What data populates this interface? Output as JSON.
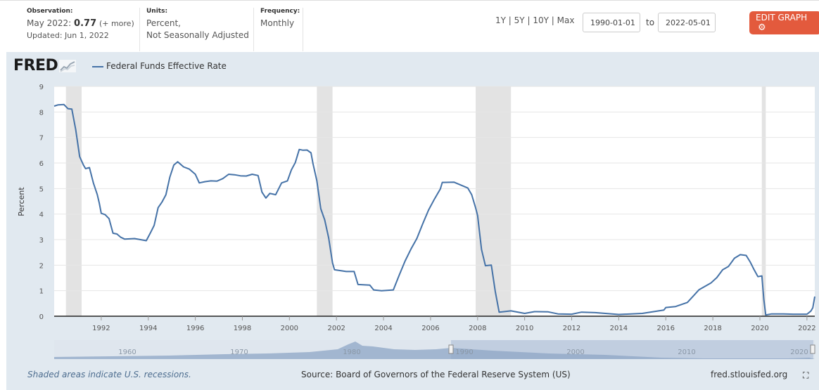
{
  "header": {
    "observation": {
      "label": "Observation:",
      "date": "May 2022:",
      "value": "0.77",
      "more": "(+ more)",
      "updated": "Updated: Jun 1, 2022"
    },
    "units": {
      "label": "Units:",
      "line1": "Percent,",
      "line2": "Not Seasonally Adjusted"
    },
    "frequency": {
      "label": "Frequency:",
      "value": "Monthly"
    },
    "ranges": [
      "1Y",
      "5Y",
      "10Y",
      "Max"
    ],
    "range_sep": "|",
    "start_date": "1990-01-01",
    "to_label": "to",
    "end_date": "2022-05-01",
    "edit_button": "EDIT GRAPH",
    "edit_icon": "gear-icon"
  },
  "logo": {
    "text": "FRED"
  },
  "legend": {
    "series_name": "Federal Funds Effective Rate",
    "color": "#4572a7"
  },
  "footer": {
    "recession_note": "Shaded areas indicate U.S. recessions.",
    "source": "Source: Board of Governors of the Federal Reserve System (US)",
    "site": "fred.stlouisfed.org",
    "fullscreen_icon": "fullscreen-icon"
  },
  "navigator": {
    "labels": [
      "1960",
      "1970",
      "1980",
      "1990",
      "2000",
      "2010",
      "2020"
    ]
  },
  "chart_data": {
    "type": "line",
    "title": "",
    "xlabel": "",
    "ylabel": "Percent",
    "xlim": [
      "1990-01-01",
      "2022-05-01"
    ],
    "ylim": [
      0,
      9
    ],
    "yticks": [
      0,
      1,
      2,
      3,
      4,
      5,
      6,
      7,
      8,
      9
    ],
    "xticks": [
      "1992",
      "1994",
      "1996",
      "1998",
      "2000",
      "2002",
      "2004",
      "2006",
      "2008",
      "2010",
      "2012",
      "2014",
      "2016",
      "2018",
      "2020",
      "2022"
    ],
    "grid": true,
    "legend_position": "top-left",
    "recessions": [
      [
        "1990-07-01",
        "1991-03-01"
      ],
      [
        "2001-03-01",
        "2001-11-01"
      ],
      [
        "2007-12-01",
        "2009-06-01"
      ],
      [
        "2020-02-01",
        "2020-04-01"
      ]
    ],
    "series": [
      {
        "name": "Federal Funds Effective Rate",
        "color": "#4572a7",
        "points": [
          [
            "1990-01-01",
            8.23
          ],
          [
            "1990-03-01",
            8.28
          ],
          [
            "1990-06-01",
            8.29
          ],
          [
            "1990-08-01",
            8.13
          ],
          [
            "1990-10-01",
            8.11
          ],
          [
            "1990-12-01",
            7.31
          ],
          [
            "1991-02-01",
            6.25
          ],
          [
            "1991-04-01",
            5.91
          ],
          [
            "1991-05-01",
            5.78
          ],
          [
            "1991-07-01",
            5.82
          ],
          [
            "1991-09-01",
            5.22
          ],
          [
            "1991-11-01",
            4.76
          ],
          [
            "1991-12-01",
            4.43
          ],
          [
            "1992-01-01",
            4.03
          ],
          [
            "1992-03-01",
            3.98
          ],
          [
            "1992-05-01",
            3.82
          ],
          [
            "1992-07-01",
            3.25
          ],
          [
            "1992-09-01",
            3.22
          ],
          [
            "1992-11-01",
            3.09
          ],
          [
            "1993-01-01",
            3.02
          ],
          [
            "1993-06-01",
            3.04
          ],
          [
            "1993-12-01",
            2.96
          ],
          [
            "1994-02-01",
            3.25
          ],
          [
            "1994-04-01",
            3.56
          ],
          [
            "1994-06-01",
            4.25
          ],
          [
            "1994-08-01",
            4.47
          ],
          [
            "1994-10-01",
            4.76
          ],
          [
            "1994-12-01",
            5.45
          ],
          [
            "1995-02-01",
            5.92
          ],
          [
            "1995-04-01",
            6.05
          ],
          [
            "1995-07-01",
            5.85
          ],
          [
            "1995-10-01",
            5.76
          ],
          [
            "1996-01-01",
            5.56
          ],
          [
            "1996-03-01",
            5.22
          ],
          [
            "1996-06-01",
            5.27
          ],
          [
            "1996-09-01",
            5.3
          ],
          [
            "1996-12-01",
            5.29
          ],
          [
            "1997-03-01",
            5.39
          ],
          [
            "1997-06-01",
            5.56
          ],
          [
            "1997-09-01",
            5.54
          ],
          [
            "1997-12-01",
            5.5
          ],
          [
            "1998-03-01",
            5.49
          ],
          [
            "1998-06-01",
            5.56
          ],
          [
            "1998-09-01",
            5.51
          ],
          [
            "1998-11-01",
            4.86
          ],
          [
            "1999-01-01",
            4.63
          ],
          [
            "1999-03-01",
            4.81
          ],
          [
            "1999-06-01",
            4.76
          ],
          [
            "1999-09-01",
            5.22
          ],
          [
            "1999-12-01",
            5.3
          ],
          [
            "2000-02-01",
            5.73
          ],
          [
            "2000-04-01",
            6.02
          ],
          [
            "2000-06-01",
            6.53
          ],
          [
            "2000-08-01",
            6.5
          ],
          [
            "2000-10-01",
            6.51
          ],
          [
            "2000-12-01",
            6.4
          ],
          [
            "2001-01-01",
            5.98
          ],
          [
            "2001-03-01",
            5.31
          ],
          [
            "2001-05-01",
            4.21
          ],
          [
            "2001-07-01",
            3.77
          ],
          [
            "2001-09-01",
            3.07
          ],
          [
            "2001-11-01",
            2.09
          ],
          [
            "2001-12-01",
            1.82
          ],
          [
            "2002-06-01",
            1.75
          ],
          [
            "2002-10-01",
            1.75
          ],
          [
            "2002-12-01",
            1.24
          ],
          [
            "2003-06-01",
            1.22
          ],
          [
            "2003-08-01",
            1.03
          ],
          [
            "2003-12-01",
            1.0
          ],
          [
            "2004-06-01",
            1.03
          ],
          [
            "2004-09-01",
            1.61
          ],
          [
            "2004-12-01",
            2.16
          ],
          [
            "2005-03-01",
            2.63
          ],
          [
            "2005-06-01",
            3.04
          ],
          [
            "2005-09-01",
            3.62
          ],
          [
            "2005-12-01",
            4.16
          ],
          [
            "2006-03-01",
            4.59
          ],
          [
            "2006-06-01",
            4.99
          ],
          [
            "2006-07-01",
            5.24
          ],
          [
            "2007-01-01",
            5.25
          ],
          [
            "2007-08-01",
            5.02
          ],
          [
            "2007-10-01",
            4.76
          ],
          [
            "2007-12-01",
            4.24
          ],
          [
            "2008-01-01",
            3.94
          ],
          [
            "2008-03-01",
            2.61
          ],
          [
            "2008-05-01",
            1.98
          ],
          [
            "2008-08-01",
            2.0
          ],
          [
            "2008-10-01",
            0.97
          ],
          [
            "2008-12-01",
            0.16
          ],
          [
            "2009-06-01",
            0.21
          ],
          [
            "2010-01-01",
            0.11
          ],
          [
            "2010-06-01",
            0.18
          ],
          [
            "2011-01-01",
            0.17
          ],
          [
            "2011-06-01",
            0.09
          ],
          [
            "2012-01-01",
            0.08
          ],
          [
            "2012-06-01",
            0.16
          ],
          [
            "2013-01-01",
            0.14
          ],
          [
            "2014-01-01",
            0.07
          ],
          [
            "2015-01-01",
            0.11
          ],
          [
            "2015-12-01",
            0.24
          ],
          [
            "2016-01-01",
            0.34
          ],
          [
            "2016-06-01",
            0.38
          ],
          [
            "2016-12-01",
            0.54
          ],
          [
            "2017-03-01",
            0.79
          ],
          [
            "2017-06-01",
            1.04
          ],
          [
            "2017-12-01",
            1.3
          ],
          [
            "2018-03-01",
            1.51
          ],
          [
            "2018-06-01",
            1.82
          ],
          [
            "2018-09-01",
            1.95
          ],
          [
            "2018-12-01",
            2.27
          ],
          [
            "2019-03-01",
            2.41
          ],
          [
            "2019-06-01",
            2.38
          ],
          [
            "2019-08-01",
            2.13
          ],
          [
            "2019-10-01",
            1.83
          ],
          [
            "2019-12-01",
            1.55
          ],
          [
            "2020-02-01",
            1.58
          ],
          [
            "2020-03-01",
            0.65
          ],
          [
            "2020-04-01",
            0.05
          ],
          [
            "2020-07-01",
            0.09
          ],
          [
            "2021-01-01",
            0.09
          ],
          [
            "2021-06-01",
            0.08
          ],
          [
            "2021-12-01",
            0.08
          ],
          [
            "2022-01-01",
            0.08
          ],
          [
            "2022-03-01",
            0.2
          ],
          [
            "2022-04-01",
            0.33
          ],
          [
            "2022-05-01",
            0.77
          ]
        ]
      }
    ]
  }
}
